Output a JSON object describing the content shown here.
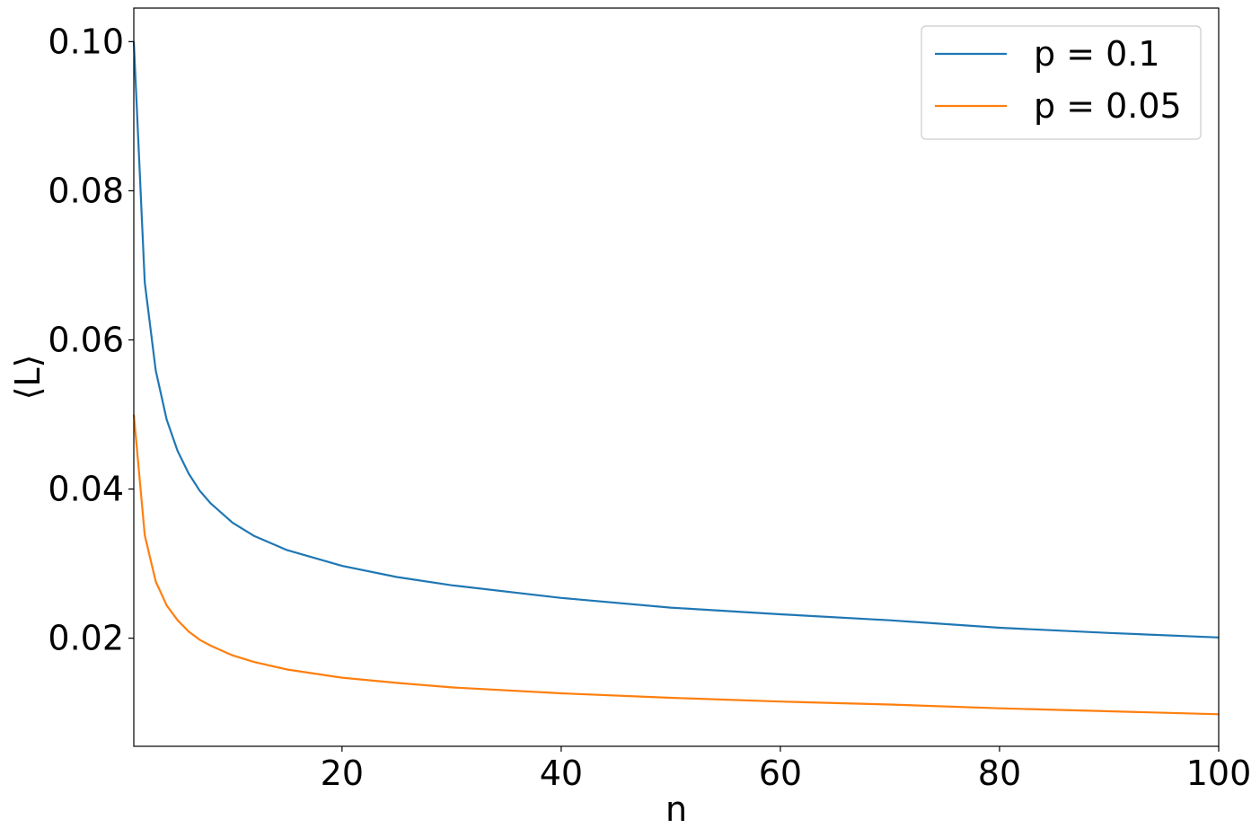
{
  "chart_data": {
    "type": "line",
    "xlabel": "n",
    "ylabel": "⟨L⟩",
    "xlim": [
      1,
      100
    ],
    "ylim": [
      0.0055,
      0.1045
    ],
    "x_ticks": [
      20,
      40,
      60,
      80,
      100
    ],
    "x_tick_labels": [
      "20",
      "40",
      "60",
      "80",
      "100"
    ],
    "y_ticks": [
      0.02,
      0.04,
      0.06,
      0.08,
      0.1
    ],
    "y_tick_labels": [
      "0.02",
      "0.04",
      "0.06",
      "0.08",
      "0.10"
    ],
    "grid": false,
    "legend_position": "top-right",
    "x": [
      1,
      2,
      3,
      4,
      5,
      6,
      7,
      8,
      10,
      12,
      15,
      20,
      25,
      30,
      40,
      50,
      60,
      70,
      80,
      90,
      100
    ],
    "series": [
      {
        "name": "p = 0.1",
        "color": "#1f77b4",
        "values": [
          0.1,
          0.0677,
          0.0559,
          0.0493,
          0.0451,
          0.0421,
          0.0398,
          0.0381,
          0.0355,
          0.0337,
          0.0318,
          0.0297,
          0.0282,
          0.0271,
          0.0254,
          0.0241,
          0.0232,
          0.0224,
          0.0214,
          0.0207,
          0.0201
        ]
      },
      {
        "name": "p = 0.05",
        "color": "#ff7f0e",
        "values": [
          0.05,
          0.0338,
          0.0276,
          0.0244,
          0.0224,
          0.0209,
          0.0198,
          0.019,
          0.0177,
          0.0168,
          0.0158,
          0.0147,
          0.014,
          0.0134,
          0.0126,
          0.012,
          0.0115,
          0.0111,
          0.0106,
          0.0102,
          0.0098
        ]
      }
    ]
  }
}
